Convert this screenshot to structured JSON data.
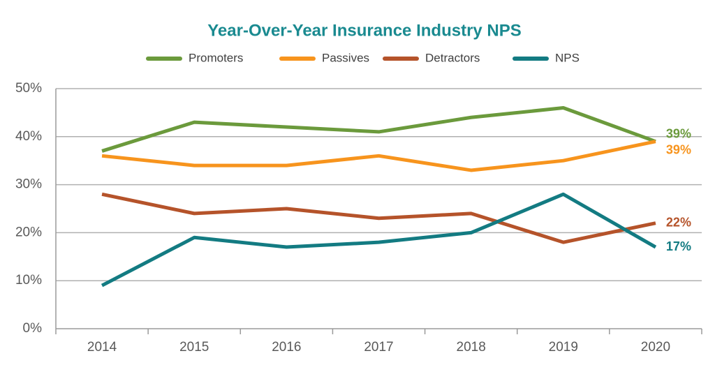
{
  "chart_data": {
    "type": "line",
    "title": "Year-Over-Year Insurance Industry NPS",
    "categories": [
      "2014",
      "2015",
      "2016",
      "2017",
      "2018",
      "2019",
      "2020"
    ],
    "series": [
      {
        "name": "Promoters",
        "color": "#6b9a3c",
        "values": [
          37,
          43,
          42,
          41,
          44,
          46,
          39
        ],
        "value_labels": [
          null,
          null,
          null,
          null,
          null,
          null,
          "39%"
        ]
      },
      {
        "name": "Passives",
        "color": "#f7941d",
        "values": [
          36,
          34,
          34,
          36,
          33,
          35,
          39
        ],
        "value_labels": [
          null,
          null,
          null,
          null,
          null,
          null,
          "39%"
        ]
      },
      {
        "name": "Detractors",
        "color": "#b5532a",
        "values": [
          28,
          24,
          25,
          23,
          24,
          18,
          22
        ],
        "value_labels": [
          null,
          null,
          null,
          null,
          null,
          null,
          "22%"
        ]
      },
      {
        "name": "NPS",
        "color": "#137b82",
        "values": [
          9,
          19,
          17,
          18,
          20,
          28,
          17
        ],
        "value_labels": [
          null,
          null,
          null,
          null,
          null,
          null,
          "17%"
        ]
      }
    ],
    "ylim": [
      0,
      50
    ],
    "yticks": [
      {
        "value": 0,
        "label": "0%"
      },
      {
        "value": 10,
        "label": "10%"
      },
      {
        "value": 20,
        "label": "20%"
      },
      {
        "value": 30,
        "label": "30%"
      },
      {
        "value": 40,
        "label": "40%"
      },
      {
        "value": 50,
        "label": "50%"
      }
    ],
    "grid": true,
    "legend": "top"
  }
}
